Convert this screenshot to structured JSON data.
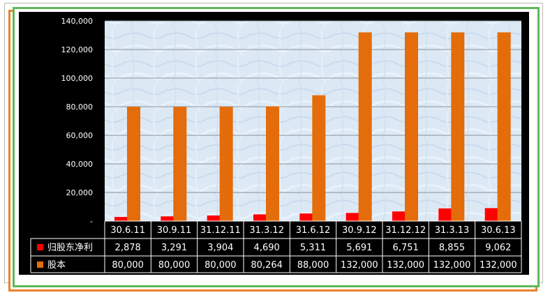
{
  "chart_data": {
    "type": "bar",
    "categories": [
      "30.6.11",
      "30.9.11",
      "31.12.11",
      "31.3.12",
      "31.6.12",
      "30.9.12",
      "31.12.12",
      "31.3.13",
      "30.6.13"
    ],
    "series": [
      {
        "name": "归股东净利",
        "color": "#ff0000",
        "values": [
          2878,
          3291,
          3904,
          4690,
          5311,
          5691,
          6751,
          8855,
          9062
        ],
        "labels": [
          "2,878",
          "3,291",
          "3,904",
          "4,690",
          "5,311",
          "5,691",
          "6,751",
          "8,855",
          "9,062"
        ]
      },
      {
        "name": "股本",
        "color": "#e46c0a",
        "values": [
          80000,
          80000,
          80000,
          80264,
          88000,
          132000,
          132000,
          132000,
          132000
        ],
        "labels": [
          "80,000",
          "80,000",
          "80,000",
          "80,264",
          "88,000",
          "132,000",
          "132,000",
          "132,000",
          "132,000"
        ]
      }
    ],
    "ylim": [
      0,
      140000
    ],
    "yticks": [
      0,
      20000,
      40000,
      60000,
      80000,
      100000,
      120000,
      140000
    ],
    "ytick_labels": [
      "-",
      "20,000",
      "40,000",
      "60,000",
      "80,000",
      "100,000",
      "120,000",
      "140,000"
    ],
    "grid": true,
    "legend": "data-table",
    "plot_background": "#dce9f5",
    "page_background": "#000000",
    "frame_colors": [
      "#e8832a",
      "#5fb85a"
    ]
  }
}
